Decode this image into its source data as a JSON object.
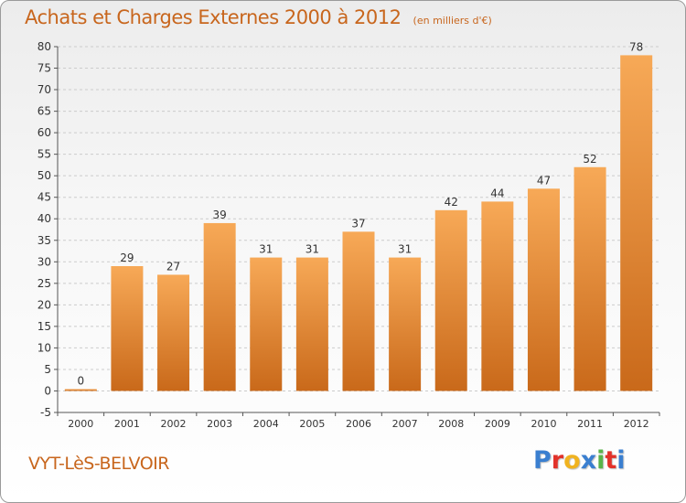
{
  "header": {
    "title": "Achats et Charges Externes 2000 à 2012",
    "unit": "(en milliers d'€)"
  },
  "footer": {
    "place": "VYT-LèS-BELVOIR",
    "brand": "Proxiti",
    "brand_colors": [
      "#3a7fd0",
      "#e2322a",
      "#f0b320",
      "#3a7fd0",
      "#5ab34a",
      "#e2322a",
      "#3a7fd0"
    ]
  },
  "colors": {
    "bar_light": "#f7a957",
    "bar_dark": "#c9691a",
    "title": "#c8661d",
    "grid": "#cccccc",
    "axis": "#555555"
  },
  "chart_data": {
    "type": "bar",
    "categories": [
      "2000",
      "2001",
      "2002",
      "2003",
      "2004",
      "2005",
      "2006",
      "2007",
      "2008",
      "2009",
      "2010",
      "2011",
      "2012"
    ],
    "values": [
      0,
      29,
      27,
      39,
      31,
      31,
      37,
      31,
      42,
      44,
      47,
      52,
      78
    ],
    "data_labels": [
      "0",
      "29",
      "27",
      "39",
      "31",
      "31",
      "37",
      "31",
      "42",
      "44",
      "47",
      "52",
      "78"
    ],
    "yticks": [
      -5,
      0,
      5,
      10,
      15,
      20,
      25,
      30,
      35,
      40,
      45,
      50,
      55,
      60,
      65,
      70,
      75,
      80
    ],
    "ytick_labels": [
      "-5",
      "0",
      "5",
      "10",
      "15",
      "20",
      "25",
      "30",
      "35",
      "40",
      "45",
      "50",
      "55",
      "60",
      "65",
      "70",
      "75",
      "80"
    ],
    "ylim": [
      -5,
      80
    ],
    "grid": "horizontal-dashed",
    "legend": "none"
  }
}
